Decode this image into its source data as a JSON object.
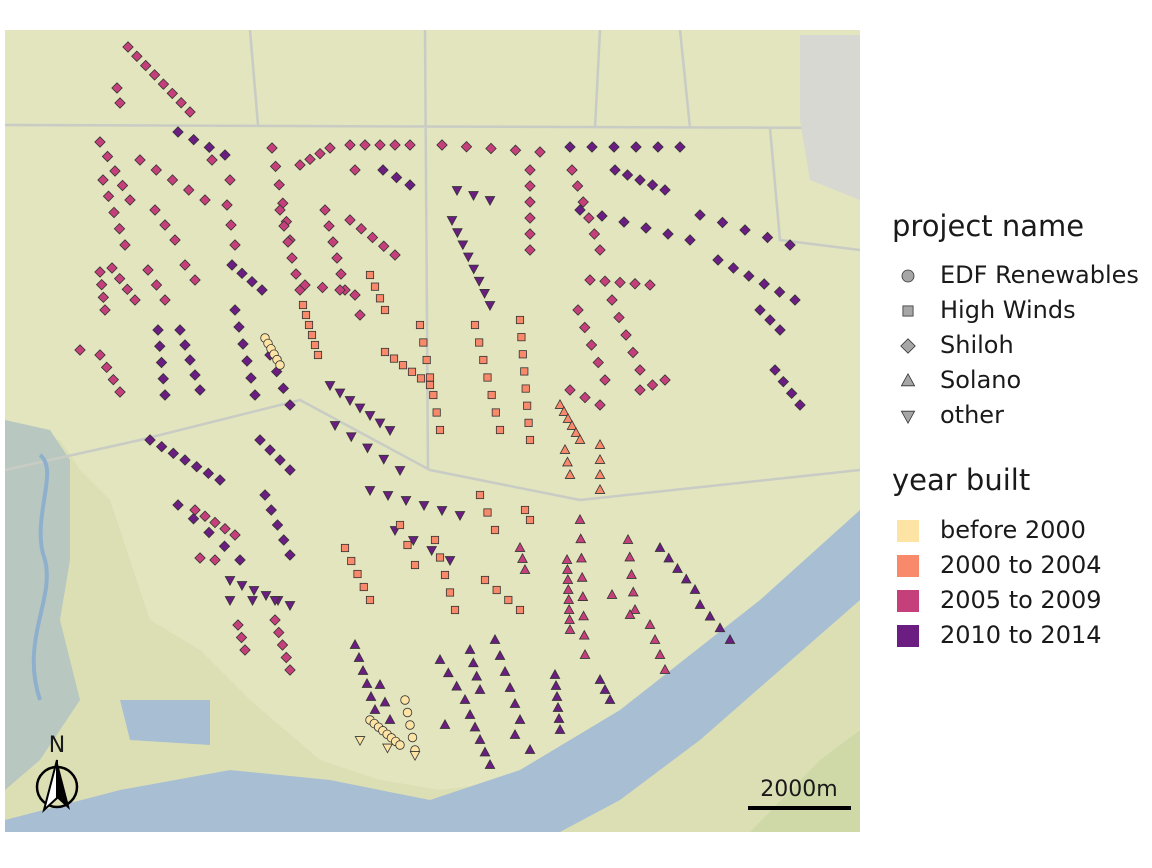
{
  "map": {
    "legend_project": {
      "title": "project name",
      "items": [
        "EDF Renewables",
        "High Winds",
        "Shiloh",
        "Solano",
        "other"
      ]
    },
    "legend_year": {
      "title": "year built",
      "items": [
        {
          "label": "before 2000",
          "color": "#fde4a5"
        },
        {
          "label": "2000 to 2004",
          "color": "#f8896b"
        },
        {
          "label": "2005 to 2009",
          "color": "#c5407a"
        },
        {
          "label": "2010 to 2014",
          "color": "#6b1d81"
        }
      ]
    },
    "scale_bar": "2000m",
    "north": "N"
  }
}
